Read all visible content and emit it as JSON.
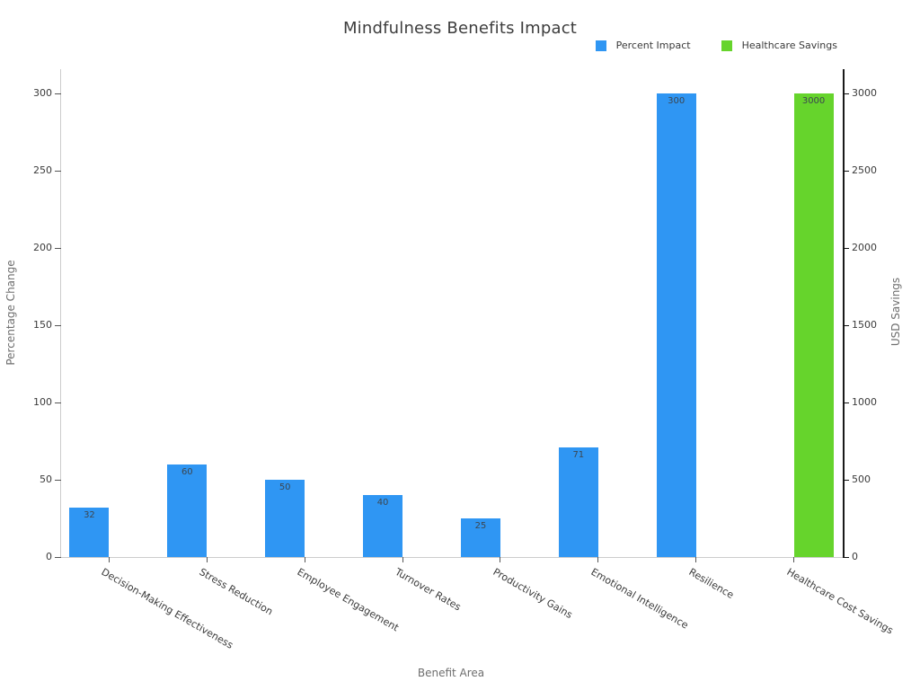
{
  "title": "Mindfulness Benefits Impact",
  "chart_data": {
    "type": "bar",
    "title": "Mindfulness Benefits Impact",
    "xlabel": "Benefit Area",
    "ylabel_left": "Percentage Change",
    "ylabel_right": "USD Savings",
    "grid": false,
    "legend_position": "top-right",
    "bar_labels_shown": true,
    "categories": [
      "Decision-Making Effectiveness",
      "Stress Reduction",
      "Employee Engagement",
      "Turnover Rates",
      "Productivity Gains",
      "Emotional Intelligence",
      "Resilience",
      "Healthcare Cost Savings"
    ],
    "series": [
      {
        "name": "Percent Impact",
        "color": "#2f96f3",
        "axis": "left",
        "values": [
          32,
          60,
          50,
          40,
          25,
          71,
          300,
          null
        ]
      },
      {
        "name": "Healthcare Savings",
        "color": "#66d42c",
        "axis": "right",
        "values": [
          null,
          null,
          null,
          null,
          null,
          null,
          null,
          3000
        ]
      }
    ],
    "axes": {
      "left": {
        "label": "Percentage Change",
        "range": [
          0,
          300
        ],
        "ticks": [
          0,
          50,
          100,
          150,
          200,
          250,
          300
        ]
      },
      "right": {
        "label": "USD Savings",
        "range": [
          0,
          3000
        ],
        "ticks": [
          0,
          500,
          1000,
          1500,
          2000,
          2500,
          3000
        ]
      }
    }
  }
}
